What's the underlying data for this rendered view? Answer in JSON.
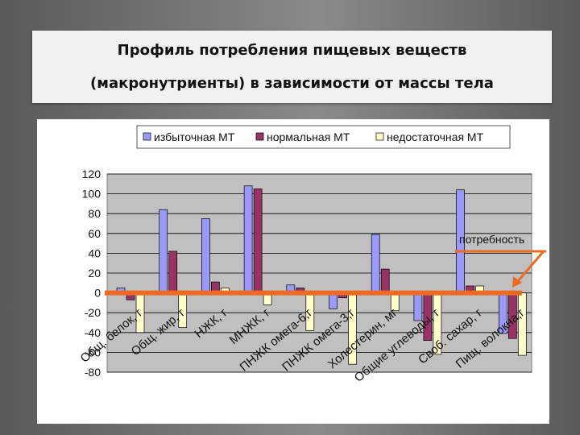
{
  "slide": {
    "title_line1": "Профиль потребления пищевых веществ",
    "title_line2": "(макронутриенты) в зависимости от массы тела"
  },
  "colors": {
    "excess": "#9999ff",
    "normal": "#993366",
    "deficit": "#ffffcc",
    "plot_bg": "#c0c0c0",
    "requirement_line": "#ee6a22"
  },
  "chart_data": {
    "type": "bar",
    "categories": [
      "Общ. белок, г",
      "Общ. жир, г",
      "НЖК, г",
      "МНЖК, г",
      "ПНЖК омега-6,г",
      "ПНЖК омега-3,г",
      "Холестерин, мг",
      "Общие углеводы, г",
      "Своб. сахар, г",
      "Пищ. волокна,г"
    ],
    "series": [
      {
        "name": "избыточная МТ",
        "values": [
          5,
          84,
          75,
          108,
          8,
          -16,
          59,
          -28,
          104,
          -41
        ]
      },
      {
        "name": "нормальная МТ",
        "values": [
          -7,
          42,
          11,
          105,
          5,
          -5,
          24,
          -48,
          7,
          -46
        ]
      },
      {
        "name": "недостаточная МТ",
        "values": [
          -40,
          -35,
          5,
          -12,
          -38,
          -72,
          -18,
          -62,
          7,
          -63
        ]
      }
    ],
    "ylim": [
      -80,
      120
    ],
    "yticks": [
      120,
      100,
      80,
      60,
      40,
      20,
      0,
      -20,
      -40,
      -60,
      -80
    ],
    "annotation": "потребность",
    "requirement_value": 0,
    "legend_position": "top",
    "grid": true
  }
}
